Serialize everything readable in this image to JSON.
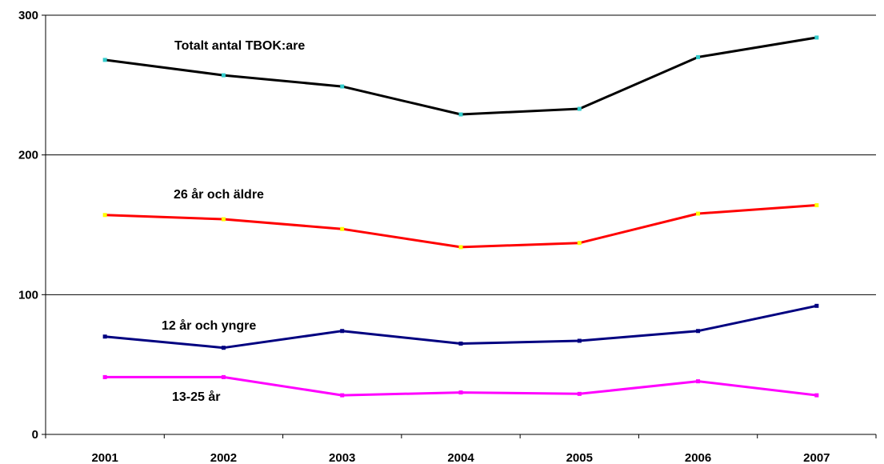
{
  "chart_data": {
    "type": "line",
    "title": "",
    "xlabel": "",
    "ylabel": "",
    "categories": [
      "2001",
      "2002",
      "2003",
      "2004",
      "2005",
      "2006",
      "2007"
    ],
    "ylim": [
      0,
      300
    ],
    "yticks": [
      0,
      100,
      200,
      300
    ],
    "grid": true,
    "legend": "none",
    "series": [
      {
        "name": "Totalt antal TBOK:are",
        "color": "#000000",
        "marker_color": "#33cccc",
        "values": [
          268,
          257,
          249,
          229,
          233,
          270,
          284
        ]
      },
      {
        "name": "26 år och äldre",
        "color": "#ff0000",
        "marker_color": "#ffff00",
        "values": [
          157,
          154,
          147,
          134,
          137,
          158,
          164
        ]
      },
      {
        "name": "12 år och yngre",
        "color": "#000080",
        "marker_color": "#000080",
        "values": [
          70,
          62,
          74,
          65,
          67,
          74,
          92
        ]
      },
      {
        "name": "13-25 år",
        "color": "#ff00ff",
        "marker_color": "#ff00ff",
        "values": [
          41,
          41,
          28,
          30,
          29,
          38,
          28
        ]
      }
    ]
  }
}
